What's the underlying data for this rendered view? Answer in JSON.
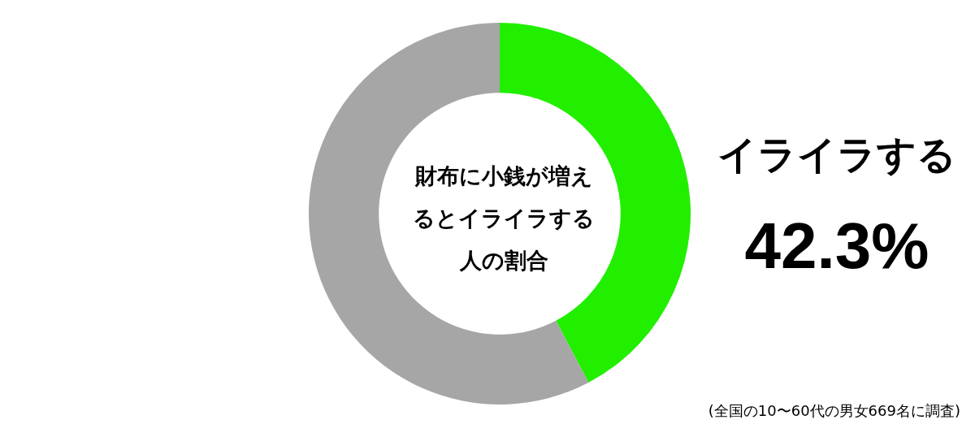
{
  "chart_data": {
    "type": "donut",
    "title": "財布に小銭が増えるとイライラする人の割合",
    "categories": [
      "イライラする",
      null
    ],
    "values": [
      42.3,
      57.7
    ],
    "colors": [
      "#22ee00",
      "#a6a6a6"
    ],
    "value_labels": [
      "42.3%",
      null
    ],
    "legend": false,
    "annotations": [
      "(全国の10〜60代の男女669名に調査)"
    ]
  }
}
